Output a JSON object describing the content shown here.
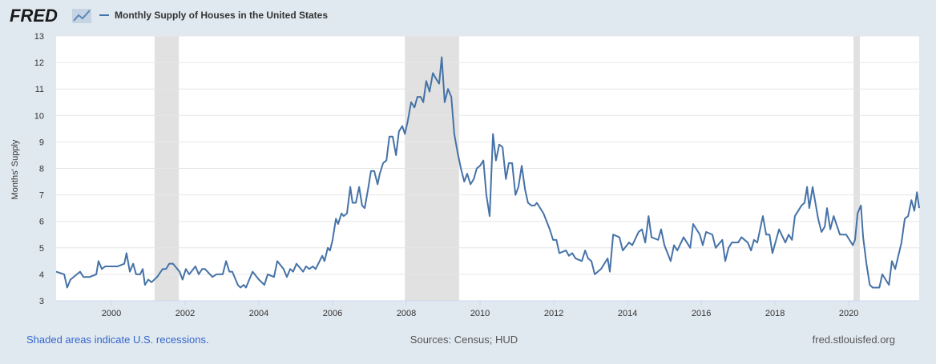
{
  "chart_data": {
    "type": "line",
    "brand": "FRED",
    "y_label": "Months' Supply",
    "note": "Shaded areas indicate U.S. recessions.",
    "source": "Sources: Census; HUD",
    "site": "fred.stlouisfed.org",
    "xlim": [
      1998.5,
      2021.91
    ],
    "xticks": [
      2000,
      2002,
      2004,
      2006,
      2008,
      2010,
      2012,
      2014,
      2016,
      2018,
      2020
    ],
    "ylim": [
      3,
      13
    ],
    "yticks": [
      3,
      4,
      5,
      6,
      7,
      8,
      9,
      10,
      11,
      12,
      13
    ],
    "grid": true,
    "recessions": [
      [
        2001.17,
        2001.83
      ],
      [
        2007.96,
        2009.43
      ],
      [
        2020.13,
        2020.3
      ]
    ],
    "recession_color": "#e1e1e1",
    "x": [
      1998.5,
      1998.72,
      1998.8,
      1998.89,
      1999.15,
      1999.24,
      1999.41,
      1999.59,
      1999.65,
      1999.74,
      1999.83,
      2000.17,
      2000.35,
      2000.41,
      2000.5,
      2000.59,
      2000.67,
      2000.78,
      2000.85,
      2000.91,
      2001.0,
      2001.09,
      2001.24,
      2001.39,
      2001.48,
      2001.57,
      2001.67,
      2001.85,
      2001.93,
      2002.02,
      2002.11,
      2002.28,
      2002.37,
      2002.46,
      2002.54,
      2002.74,
      2002.85,
      2003.02,
      2003.11,
      2003.2,
      2003.28,
      2003.43,
      2003.5,
      2003.59,
      2003.65,
      2003.74,
      2003.83,
      2004.0,
      2004.15,
      2004.24,
      2004.41,
      2004.5,
      2004.67,
      2004.76,
      2004.85,
      2004.93,
      2005.02,
      2005.2,
      2005.28,
      2005.37,
      2005.46,
      2005.54,
      2005.72,
      2005.78,
      2005.87,
      2005.93,
      2006.0,
      2006.09,
      2006.15,
      2006.24,
      2006.3,
      2006.39,
      2006.48,
      2006.54,
      2006.63,
      2006.72,
      2006.8,
      2006.87,
      2006.96,
      2007.04,
      2007.13,
      2007.22,
      2007.28,
      2007.37,
      2007.46,
      2007.54,
      2007.63,
      2007.72,
      2007.8,
      2007.89,
      2007.96,
      2008.04,
      2008.13,
      2008.22,
      2008.3,
      2008.39,
      2008.46,
      2008.54,
      2008.63,
      2008.72,
      2008.8,
      2008.89,
      2008.96,
      2009.04,
      2009.13,
      2009.22,
      2009.3,
      2009.39,
      2009.48,
      2009.57,
      2009.65,
      2009.74,
      2009.83,
      2009.91,
      2010.0,
      2010.09,
      2010.17,
      2010.26,
      2010.35,
      2010.43,
      2010.52,
      2010.61,
      2010.7,
      2010.78,
      2010.87,
      2010.96,
      2011.04,
      2011.13,
      2011.22,
      2011.3,
      2011.39,
      2011.48,
      2011.54,
      2011.72,
      2011.89,
      2011.98,
      2012.07,
      2012.15,
      2012.33,
      2012.41,
      2012.5,
      2012.59,
      2012.76,
      2012.85,
      2012.93,
      2013.02,
      2013.11,
      2013.28,
      2013.46,
      2013.52,
      2013.61,
      2013.78,
      2013.87,
      2014.04,
      2014.13,
      2014.3,
      2014.39,
      2014.48,
      2014.57,
      2014.65,
      2014.83,
      2014.91,
      2015.0,
      2015.17,
      2015.26,
      2015.35,
      2015.52,
      2015.7,
      2015.78,
      2015.96,
      2016.04,
      2016.13,
      2016.3,
      2016.39,
      2016.57,
      2016.65,
      2016.74,
      2016.83,
      2017.0,
      2017.09,
      2017.26,
      2017.35,
      2017.43,
      2017.52,
      2017.67,
      2017.76,
      2017.85,
      2017.93,
      2018.11,
      2018.28,
      2018.37,
      2018.46,
      2018.54,
      2018.72,
      2018.8,
      2018.87,
      2018.93,
      2019.02,
      2019.17,
      2019.26,
      2019.35,
      2019.41,
      2019.5,
      2019.59,
      2019.76,
      2019.93,
      2020.11,
      2020.17,
      2020.24,
      2020.33,
      2020.39,
      2020.48,
      2020.57,
      2020.65,
      2020.83,
      2020.91,
      2021.09,
      2021.17,
      2021.26,
      2021.43,
      2021.52,
      2021.61,
      2021.7,
      2021.78,
      2021.85,
      2021.91
    ],
    "series": [
      {
        "name": "Monthly Supply of Houses in the United States",
        "color": "#4572a7",
        "values": [
          4.1,
          4.0,
          3.5,
          3.8,
          4.1,
          3.9,
          3.9,
          4.0,
          4.5,
          4.2,
          4.3,
          4.3,
          4.4,
          4.8,
          4.1,
          4.4,
          4.0,
          4.0,
          4.2,
          3.6,
          3.8,
          3.7,
          3.9,
          4.2,
          4.2,
          4.4,
          4.4,
          4.1,
          3.8,
          4.2,
          4.0,
          4.3,
          4.0,
          4.2,
          4.2,
          3.9,
          4.0,
          4.0,
          4.5,
          4.1,
          4.1,
          3.6,
          3.5,
          3.6,
          3.5,
          3.8,
          4.1,
          3.8,
          3.6,
          4.0,
          3.9,
          4.5,
          4.2,
          3.9,
          4.2,
          4.1,
          4.4,
          4.1,
          4.3,
          4.2,
          4.3,
          4.2,
          4.7,
          4.5,
          5.0,
          4.9,
          5.3,
          6.1,
          5.9,
          6.3,
          6.2,
          6.3,
          7.3,
          6.7,
          6.7,
          7.3,
          6.6,
          6.5,
          7.2,
          7.9,
          7.9,
          7.4,
          7.8,
          8.2,
          8.3,
          9.2,
          9.2,
          8.5,
          9.4,
          9.6,
          9.3,
          9.8,
          10.5,
          10.3,
          10.7,
          10.7,
          10.5,
          11.3,
          10.9,
          11.6,
          11.4,
          11.2,
          12.2,
          10.5,
          11.0,
          10.7,
          9.3,
          8.6,
          8.0,
          7.5,
          7.8,
          7.4,
          7.6,
          8.0,
          8.1,
          8.3,
          7.0,
          6.2,
          9.3,
          8.3,
          8.9,
          8.8,
          7.6,
          8.2,
          8.2,
          7.0,
          7.3,
          8.1,
          7.2,
          6.7,
          6.6,
          6.6,
          6.7,
          6.3,
          5.7,
          5.3,
          5.3,
          4.8,
          4.9,
          4.7,
          4.8,
          4.6,
          4.5,
          4.9,
          4.6,
          4.5,
          4.0,
          4.2,
          4.6,
          4.1,
          5.5,
          5.4,
          4.9,
          5.2,
          5.1,
          5.6,
          5.7,
          5.2,
          6.2,
          5.4,
          5.3,
          5.7,
          5.1,
          4.5,
          5.1,
          4.9,
          5.4,
          5.0,
          5.9,
          5.5,
          5.1,
          5.6,
          5.5,
          5.0,
          5.3,
          4.5,
          5.0,
          5.2,
          5.2,
          5.4,
          5.2,
          4.9,
          5.3,
          5.2,
          6.2,
          5.5,
          5.5,
          4.8,
          5.7,
          5.2,
          5.5,
          5.3,
          6.2,
          6.6,
          6.7,
          7.3,
          6.5,
          7.3,
          6.1,
          5.6,
          5.8,
          6.5,
          5.7,
          6.2,
          5.5,
          5.5,
          5.1,
          5.3,
          6.3,
          6.6,
          5.4,
          4.4,
          3.6,
          3.5,
          3.5,
          4.0,
          3.6,
          4.5,
          4.2,
          5.2,
          6.1,
          6.2,
          6.8,
          6.4,
          7.1,
          6.5
        ]
      }
    ]
  }
}
